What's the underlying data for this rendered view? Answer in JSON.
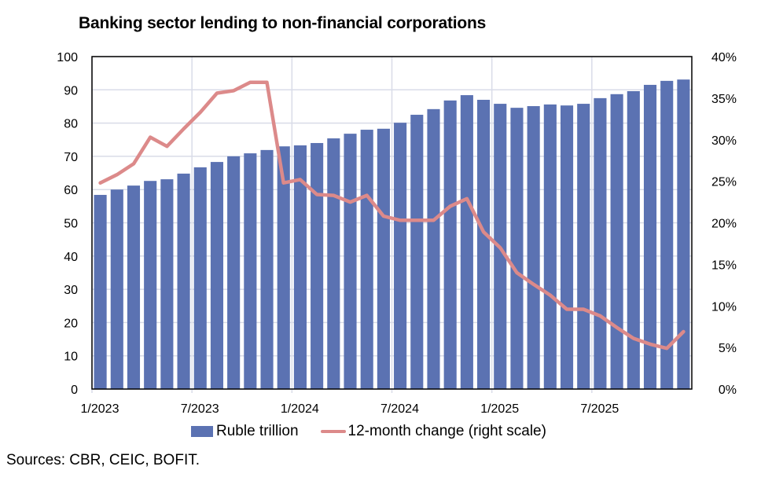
{
  "chart_data": {
    "type": "bar+line",
    "title": "Banking sector lending to non-financial corporations",
    "x_tick_labels": [
      "1/2023",
      "7/2023",
      "1/2024",
      "7/2024",
      "1/2025",
      "7/2025"
    ],
    "months": [
      "1/2023",
      "2/2023",
      "3/2023",
      "4/2023",
      "5/2023",
      "6/2023",
      "7/2023",
      "8/2023",
      "9/2023",
      "10/2023",
      "11/2023",
      "12/2023",
      "1/2024",
      "2/2024",
      "3/2024",
      "4/2024",
      "5/2024",
      "6/2024",
      "7/2024",
      "8/2024",
      "9/2024",
      "10/2024",
      "11/2024",
      "12/2024",
      "1/2025",
      "2/2025",
      "3/2025",
      "4/2025",
      "5/2025",
      "6/2025",
      "7/2025",
      "8/2025",
      "9/2025",
      "10/2025",
      "11/2025",
      "12/2025"
    ],
    "left_axis": {
      "ylim": [
        0,
        100
      ],
      "ticks": [
        "0",
        "10",
        "20",
        "30",
        "40",
        "50",
        "60",
        "70",
        "80",
        "90",
        "100"
      ]
    },
    "right_axis": {
      "ylim": [
        0,
        40
      ],
      "ticks": [
        "0%",
        "5%",
        "10%",
        "15%",
        "20%",
        "25%",
        "30%",
        "35%",
        "40%"
      ]
    },
    "grid": true,
    "legend_position": "bottom",
    "series": [
      {
        "name": "Ruble trillion",
        "type": "bar",
        "axis": "left",
        "color": "#5b72b2",
        "values": [
          58.4,
          60.0,
          61.2,
          62.6,
          63.1,
          64.8,
          66.7,
          68.3,
          70.0,
          70.9,
          71.9,
          73.0,
          73.3,
          74.0,
          75.4,
          76.8,
          78.0,
          78.3,
          80.1,
          82.5,
          84.2,
          86.8,
          88.4,
          87.0,
          85.8,
          84.6,
          85.1,
          85.6,
          85.3,
          85.8,
          87.5,
          88.7,
          89.6,
          91.5,
          92.7,
          93.1
        ]
      },
      {
        "name": "12-month change (right scale)",
        "type": "line",
        "axis": "right",
        "color": "#dc8a8a",
        "values": [
          24.8,
          25.8,
          27.1,
          30.3,
          29.2,
          31.3,
          33.3,
          35.6,
          35.9,
          36.9,
          36.9,
          24.8,
          25.2,
          23.4,
          23.3,
          22.5,
          23.3,
          20.8,
          20.3,
          20.3,
          20.3,
          22.0,
          22.9,
          18.9,
          17.0,
          14.0,
          12.6,
          11.3,
          9.6,
          9.6,
          8.8,
          7.4,
          6.1,
          5.4,
          4.9,
          6.9
        ]
      }
    ]
  },
  "source": "Sources: CBR, CEIC, BOFIT."
}
